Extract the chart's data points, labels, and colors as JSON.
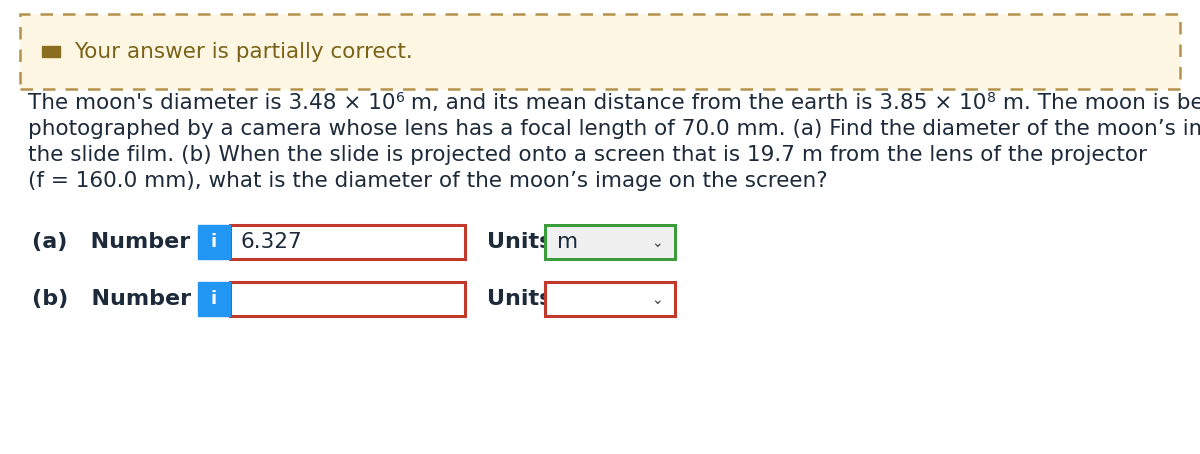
{
  "banner_text": "Your answer is partially correct.",
  "banner_bg": "#fdf6e3",
  "banner_border": "#b5924c",
  "banner_icon_color": "#8a6d20",
  "banner_text_color": "#7a6218",
  "problem_line2": "photographed by a camera whose lens has a focal length of 70.0 mm. (a) Find the diameter of the moon’s image on",
  "problem_line3": "the slide film. (b) When the slide is projected onto a screen that is 19.7 m from the lens of the projector",
  "problem_line4": "(f = 160.0 mm), what is the diameter of the moon’s image on the screen?",
  "row_a_value": "6.327",
  "units_a_text": "m",
  "info_btn_color": "#2196f3",
  "info_btn_text": "i",
  "input_border_red": "#c0392b",
  "units_a_border": "#3a9c3a",
  "units_a_bg": "#f0f0f0",
  "units_b_border": "#c0392b",
  "units_b_bg": "#ffffff",
  "bg_color": "#ffffff",
  "text_color": "#1c2a3a",
  "font_size_body": 15.5,
  "font_size_banner": 15.5,
  "font_size_label": 16
}
